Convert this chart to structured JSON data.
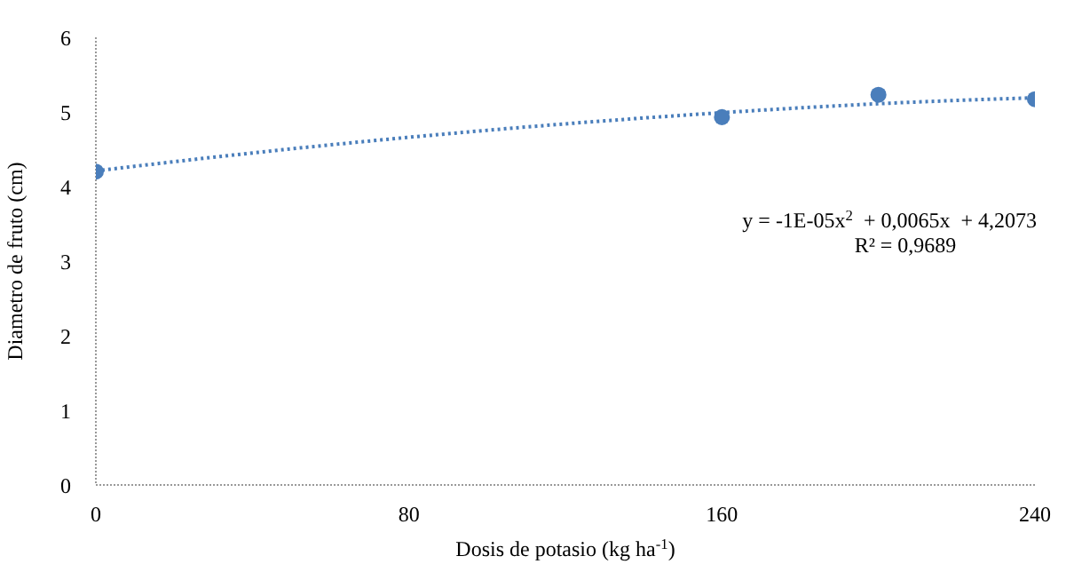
{
  "chart_data": {
    "type": "scatter",
    "xlabel": "Dosis de potasio (kg ha$^{-1}$)",
    "ylabel": "Diametro  de fruto (cm)",
    "x": [
      0,
      160,
      200,
      240
    ],
    "series": [
      {
        "color": "#4a7ebb",
        "values": [
          4.2,
          4.93,
          5.23,
          5.17
        ],
        "marker": "circle"
      },
      {
        "type": "line",
        "color": "#4a7ebb",
        "x": [
          0,
          40,
          80,
          120,
          160,
          200,
          240
        ],
        "values": [
          4.21,
          4.45,
          4.66,
          4.84,
          4.99,
          5.11,
          5.19
        ],
        "line_style": "dotted",
        "marker": "none"
      }
    ],
    "xlim": [
      0,
      240
    ],
    "xticks": [
      0,
      80,
      160,
      240
    ],
    "ylim": [
      0,
      6
    ],
    "yticks": [
      0,
      1,
      2,
      3,
      4,
      5,
      6
    ],
    "grid": false,
    "legend": false,
    "annotations": [
      "y = -1E-05x$^{2}$  + 0,0065x  + 4,2073",
      "R² = 0,9689"
    ]
  }
}
